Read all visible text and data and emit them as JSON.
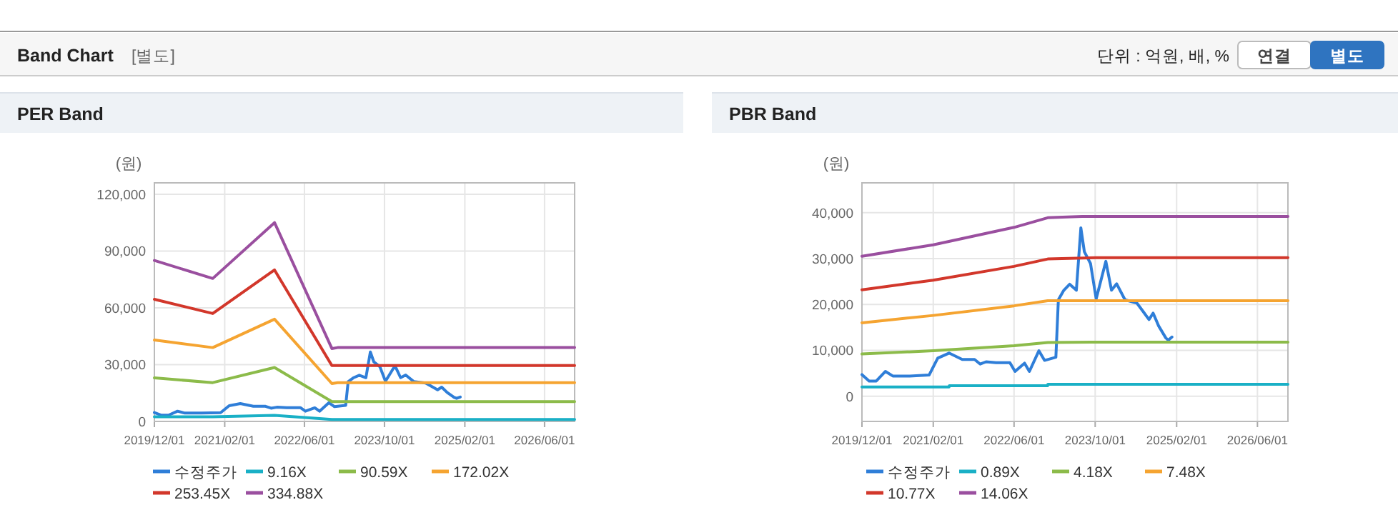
{
  "chart_data": [
    {
      "type": "other",
      "title": "Band Chart",
      "annotations": [
        "[별도]",
        "단위 : 억원, 배, %",
        "연결",
        "별도"
      ]
    },
    {
      "type": "line",
      "title": "PER Band",
      "ylabel": "(원)",
      "xlim": [
        "2019-12-01",
        "2026-12-01"
      ],
      "ylim": [
        0,
        126000
      ],
      "xticks": [
        {
          "value": "2019-12-01",
          "label": "2019/12/01"
        },
        {
          "value": "2021-02-01",
          "label": "2021/02/01"
        },
        {
          "value": "2022-06-01",
          "label": "2022/06/01"
        },
        {
          "value": "2023-10-01",
          "label": "2023/10/01"
        },
        {
          "value": "2025-02-01",
          "label": "2025/02/01"
        },
        {
          "value": "2026-06-01",
          "label": "2026/06/01"
        }
      ],
      "yticks": [
        0,
        {
          "value": 30000,
          "label": "30,000"
        },
        {
          "value": 60000,
          "label": "60,000"
        },
        {
          "value": 90000,
          "label": "90,000"
        },
        {
          "value": 120000,
          "label": "120,000"
        }
      ],
      "grid": true,
      "legend": "bottom",
      "marker": "none",
      "line_style": "solid",
      "series": [
        {
          "name": "수정주가",
          "color": "#2f7ed8",
          "x": [
            "2019-12-01",
            "2020-01-13",
            "2020-02-25",
            "2020-04-20",
            "2020-06-03",
            "2020-09-13",
            "2021-01-07",
            "2021-02-28",
            "2021-05-07",
            "2021-07-25",
            "2021-10-07",
            "2021-11-10",
            "2021-12-15",
            "2022-02-13",
            "2022-05-07",
            "2022-06-07",
            "2022-08-03",
            "2022-09-01",
            "2022-10-28",
            "2022-12-01",
            "2023-02-07",
            "2023-02-22",
            "2023-03-25",
            "2023-05-01",
            "2023-06-10",
            "2023-07-07",
            "2023-07-28",
            "2023-09-03",
            "2023-10-07",
            "2023-12-04",
            "2024-01-07",
            "2024-02-07",
            "2024-03-28",
            "2024-06-07",
            "2024-07-16",
            "2024-08-19",
            "2024-09-13",
            "2024-10-16",
            "2024-11-28",
            "2024-12-13",
            "2025-01-04"
          ],
          "values": [
            4700,
            3300,
            3300,
            5400,
            4400,
            4400,
            4600,
            8300,
            9400,
            8000,
            8000,
            7000,
            7500,
            7300,
            7300,
            5400,
            7200,
            5400,
            9900,
            7800,
            8500,
            21000,
            23000,
            24400,
            23100,
            36700,
            31500,
            28900,
            21200,
            29400,
            23100,
            24500,
            21000,
            20300,
            18400,
            16700,
            18100,
            15300,
            12700,
            12200,
            12900
          ]
        },
        {
          "name": "9.16X",
          "color": "#1ab0c6",
          "x": [
            "2019-12-01",
            "2020-11-20",
            "2021-12-01",
            "2022-11-15",
            "2022-12-20",
            "2026-12-01"
          ],
          "values": [
            2500,
            2500,
            3200,
            1000,
            1000,
            1000
          ]
        },
        {
          "name": "90.59X",
          "color": "#8cbb4a",
          "x": [
            "2019-12-01",
            "2020-11-20",
            "2021-12-01",
            "2022-11-15",
            "2022-12-20",
            "2026-12-01"
          ],
          "values": [
            23000,
            20500,
            28500,
            10500,
            10500,
            10500
          ]
        },
        {
          "name": "172.02X",
          "color": "#f5a431",
          "x": [
            "2019-12-01",
            "2020-11-20",
            "2021-12-01",
            "2022-11-15",
            "2022-12-20",
            "2026-12-01"
          ],
          "values": [
            43000,
            39000,
            54000,
            20000,
            20500,
            20500
          ]
        },
        {
          "name": "253.45X",
          "color": "#d2372b",
          "x": [
            "2019-12-01",
            "2020-11-20",
            "2021-12-01",
            "2022-11-15",
            "2022-12-20",
            "2026-12-01"
          ],
          "values": [
            64500,
            57000,
            80000,
            29500,
            29500,
            29500
          ]
        },
        {
          "name": "334.88X",
          "color": "#9a4f9f",
          "x": [
            "2019-12-01",
            "2020-11-20",
            "2021-12-01",
            "2022-11-15",
            "2022-12-20",
            "2026-12-01"
          ],
          "values": [
            85000,
            75500,
            105000,
            38500,
            39000,
            39000
          ]
        }
      ]
    },
    {
      "type": "line",
      "title": "PBR Band",
      "ylabel": "(원)",
      "xlim": [
        "2019-12-01",
        "2026-12-01"
      ],
      "ylim": [
        -5500,
        46500
      ],
      "xticks": [
        {
          "value": "2019-12-01",
          "label": "2019/12/01"
        },
        {
          "value": "2021-02-01",
          "label": "2021/02/01"
        },
        {
          "value": "2022-06-01",
          "label": "2022/06/01"
        },
        {
          "value": "2023-10-01",
          "label": "2023/10/01"
        },
        {
          "value": "2025-02-01",
          "label": "2025/02/01"
        },
        {
          "value": "2026-06-01",
          "label": "2026/06/01"
        }
      ],
      "yticks": [
        0,
        {
          "value": 10000,
          "label": "10,000"
        },
        {
          "value": 20000,
          "label": "20,000"
        },
        {
          "value": 30000,
          "label": "30,000"
        },
        {
          "value": 40000,
          "label": "40,000"
        }
      ],
      "grid": true,
      "legend": "bottom",
      "marker": "none",
      "line_style": "solid",
      "series": [
        {
          "name": "수정주가",
          "color": "#2f7ed8",
          "x": [
            "2019-12-01",
            "2020-01-13",
            "2020-02-25",
            "2020-04-20",
            "2020-06-03",
            "2020-09-13",
            "2021-01-07",
            "2021-02-28",
            "2021-05-07",
            "2021-07-25",
            "2021-10-07",
            "2021-11-10",
            "2021-12-15",
            "2022-02-13",
            "2022-05-07",
            "2022-06-07",
            "2022-08-03",
            "2022-09-01",
            "2022-10-28",
            "2022-12-01",
            "2023-02-07",
            "2023-02-22",
            "2023-03-25",
            "2023-05-01",
            "2023-06-10",
            "2023-07-07",
            "2023-07-28",
            "2023-09-03",
            "2023-10-07",
            "2023-12-04",
            "2024-01-07",
            "2024-02-07",
            "2024-03-28",
            "2024-06-07",
            "2024-07-16",
            "2024-08-19",
            "2024-09-13",
            "2024-10-16",
            "2024-11-28",
            "2024-12-13",
            "2025-01-04"
          ],
          "values": [
            4700,
            3300,
            3300,
            5400,
            4400,
            4400,
            4600,
            8300,
            9400,
            8000,
            8000,
            7000,
            7500,
            7300,
            7300,
            5400,
            7200,
            5400,
            9900,
            7800,
            8500,
            21000,
            23000,
            24400,
            23100,
            36700,
            31500,
            28900,
            21200,
            29400,
            23100,
            24500,
            21000,
            20300,
            18400,
            16700,
            18100,
            15300,
            12700,
            12200,
            12900
          ]
        },
        {
          "name": "0.89X",
          "color": "#1ab0c6",
          "x": [
            "2019-12-01",
            "2021-05-07",
            "2021-05-08",
            "2022-12-20",
            "2022-12-21",
            "2026-12-01"
          ],
          "values": [
            2000,
            2000,
            2300,
            2300,
            2600,
            2600
          ]
        },
        {
          "name": "4.18X",
          "color": "#8cbb4a",
          "x": [
            "2019-12-01",
            "2021-02-01",
            "2022-06-01",
            "2022-12-20",
            "2023-10-07",
            "2026-12-01"
          ],
          "values": [
            9200,
            9900,
            11000,
            11700,
            11800,
            11800
          ]
        },
        {
          "name": "7.48X",
          "color": "#f5a431",
          "x": [
            "2019-12-01",
            "2021-02-01",
            "2022-06-01",
            "2022-12-20",
            "2023-10-07",
            "2026-12-01"
          ],
          "values": [
            16000,
            17600,
            19700,
            20800,
            20800,
            20800
          ]
        },
        {
          "name": "10.77X",
          "color": "#d2372b",
          "x": [
            "2019-12-01",
            "2021-02-01",
            "2022-06-01",
            "2022-12-20",
            "2023-10-07",
            "2026-12-01"
          ],
          "values": [
            23200,
            25300,
            28300,
            29900,
            30200,
            30200
          ]
        },
        {
          "name": "14.06X",
          "color": "#9a4f9f",
          "x": [
            "2019-12-01",
            "2021-02-01",
            "2022-06-01",
            "2022-12-20",
            "2023-07-15",
            "2026-12-01"
          ],
          "values": [
            30500,
            33000,
            36800,
            38900,
            39200,
            39200
          ]
        }
      ]
    }
  ]
}
